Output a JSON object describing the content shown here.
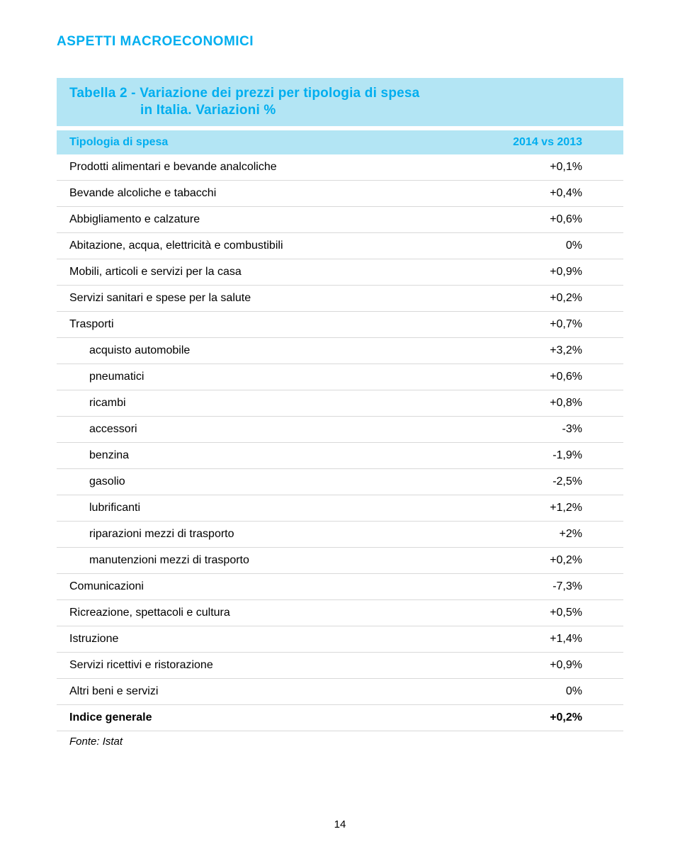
{
  "header": {
    "running": "ASPETTI MACROECONOMICI",
    "title_line1": "Tabella 2 - Variazione dei prezzi per tipologia di spesa",
    "title_line2": "in Italia. Variazioni %"
  },
  "table": {
    "col_label": "Tipologia di spesa",
    "col_value": "2014 vs 2013",
    "row_border_color": "#d9d9d9",
    "header_bg": "#b3e5f4",
    "header_text_color": "#00aeef",
    "rows": [
      {
        "label": "Prodotti alimentari e bevande analcoliche",
        "value": "+0,1%",
        "indent": false,
        "bold": false
      },
      {
        "label": "Bevande alcoliche e tabacchi",
        "value": "+0,4%",
        "indent": false,
        "bold": false
      },
      {
        "label": "Abbigliamento e calzature",
        "value": "+0,6%",
        "indent": false,
        "bold": false
      },
      {
        "label": "Abitazione, acqua, elettricità e combustibili",
        "value": "0%",
        "indent": false,
        "bold": false
      },
      {
        "label": "Mobili, articoli e servizi per la casa",
        "value": "+0,9%",
        "indent": false,
        "bold": false
      },
      {
        "label": "Servizi sanitari e spese per la salute",
        "value": "+0,2%",
        "indent": false,
        "bold": false
      },
      {
        "label": "Trasporti",
        "value": "+0,7%",
        "indent": false,
        "bold": false
      },
      {
        "label": "acquisto automobile",
        "value": "+3,2%",
        "indent": true,
        "bold": false
      },
      {
        "label": "pneumatici",
        "value": "+0,6%",
        "indent": true,
        "bold": false
      },
      {
        "label": "ricambi",
        "value": "+0,8%",
        "indent": true,
        "bold": false
      },
      {
        "label": "accessori",
        "value": "-3%",
        "indent": true,
        "bold": false
      },
      {
        "label": "benzina",
        "value": "-1,9%",
        "indent": true,
        "bold": false
      },
      {
        "label": "gasolio",
        "value": "-2,5%",
        "indent": true,
        "bold": false
      },
      {
        "label": "lubrificanti",
        "value": "+1,2%",
        "indent": true,
        "bold": false
      },
      {
        "label": "riparazioni mezzi di trasporto",
        "value": "+2%",
        "indent": true,
        "bold": false
      },
      {
        "label": "manutenzioni mezzi di trasporto",
        "value": "+0,2%",
        "indent": true,
        "bold": false
      },
      {
        "label": "Comunicazioni",
        "value": "-7,3%",
        "indent": false,
        "bold": false
      },
      {
        "label": "Ricreazione, spettacoli e cultura",
        "value": "+0,5%",
        "indent": false,
        "bold": false
      },
      {
        "label": "Istruzione",
        "value": "+1,4%",
        "indent": false,
        "bold": false
      },
      {
        "label": "Servizi ricettivi e ristorazione",
        "value": "+0,9%",
        "indent": false,
        "bold": false
      },
      {
        "label": "Altri beni e servizi",
        "value": "0%",
        "indent": false,
        "bold": false
      },
      {
        "label": "Indice generale",
        "value": "+0,2%",
        "indent": false,
        "bold": true
      }
    ]
  },
  "source": "Fonte: Istat",
  "page_number": "14",
  "colors": {
    "brand": "#00aeef",
    "panel_bg": "#b3e5f4",
    "text": "#000000",
    "bg": "#ffffff"
  }
}
